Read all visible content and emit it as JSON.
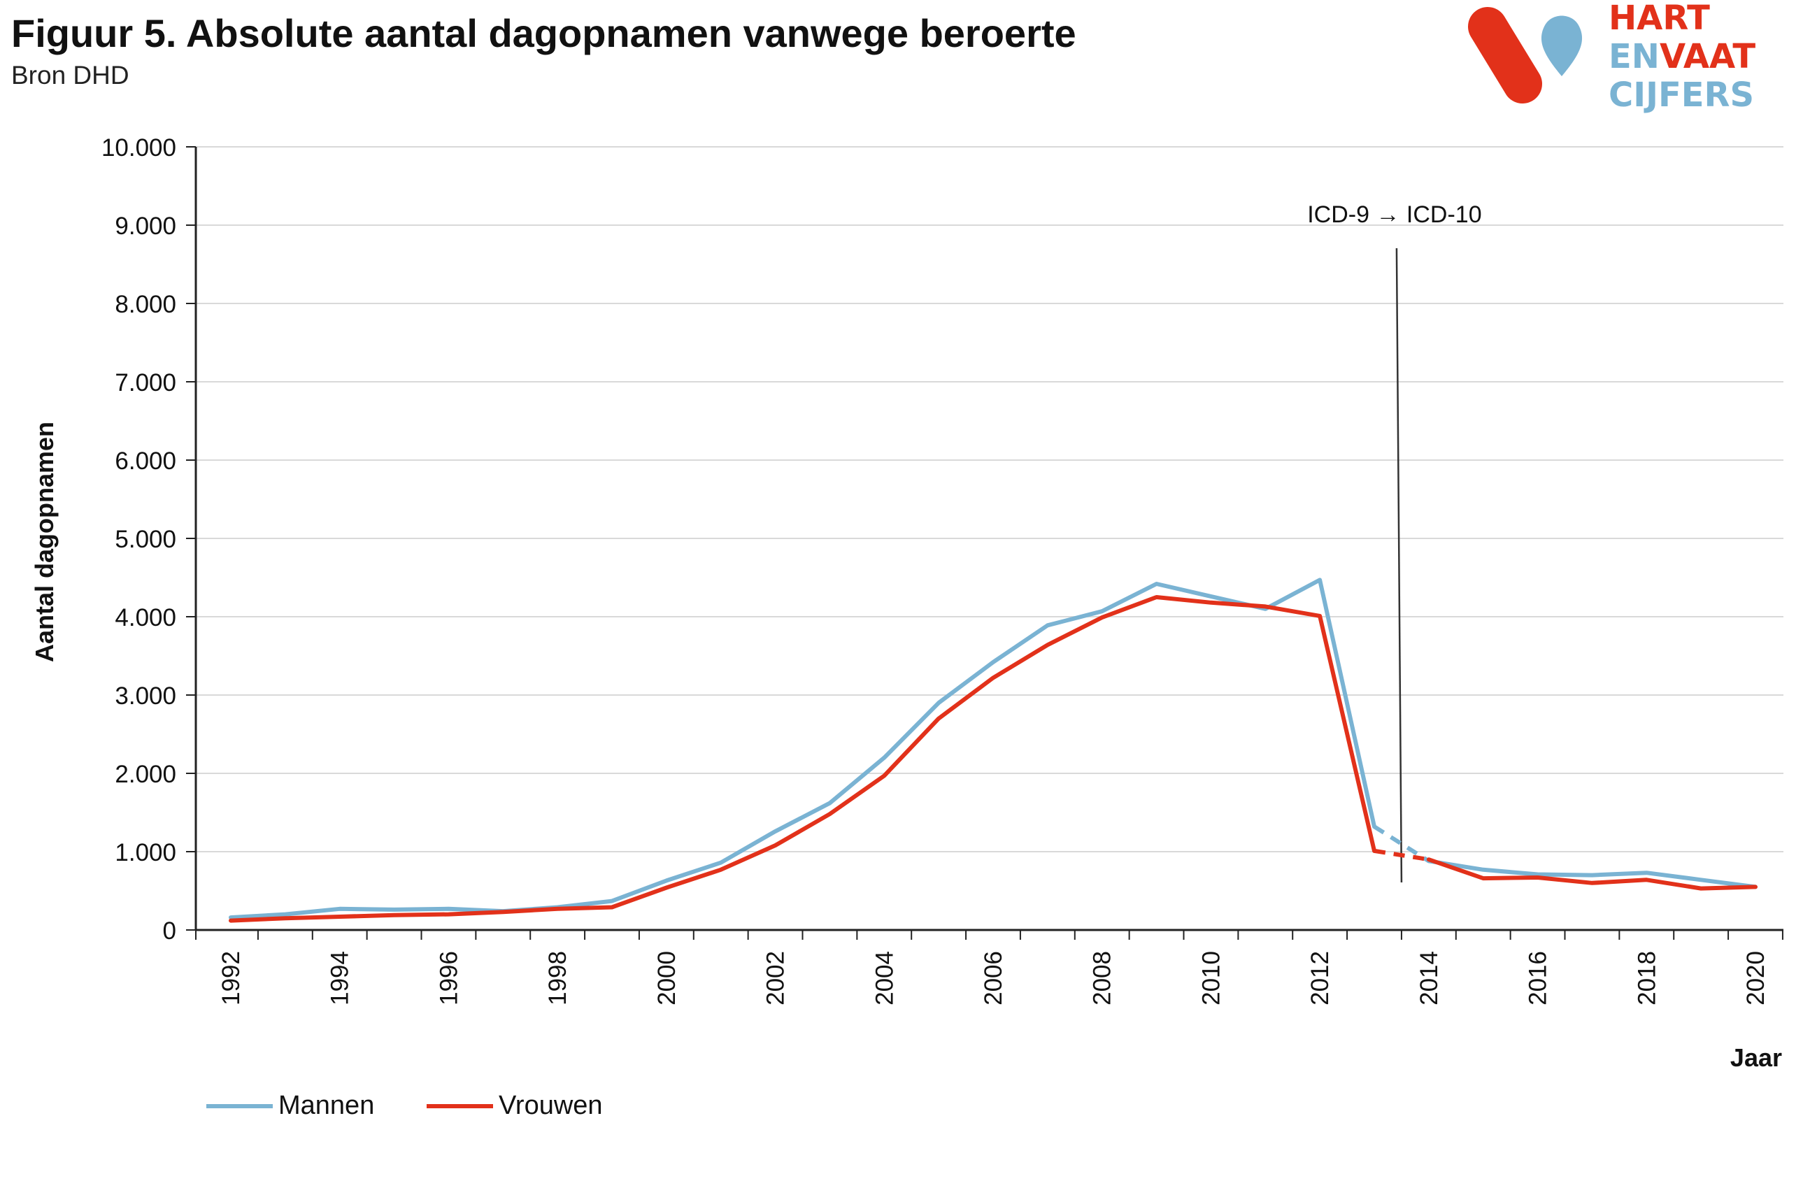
{
  "header": {
    "title": "Figuur 5. Absolute aantal dagopnamen vanwege beroerte",
    "subtitle": "Bron DHD"
  },
  "logo": {
    "line1_a": "HART",
    "line2_a": "EN",
    "line2_b": "VAAT",
    "line3_a": "CIJFERS",
    "colors": {
      "red": "#e2311a",
      "blue": "#7ab3d3"
    }
  },
  "chart_data": {
    "type": "line",
    "title": "Figuur 5. Absolute aantal dagopnamen vanwege beroerte",
    "xlabel": "Jaar",
    "ylabel": "Aantal dagopnamen",
    "ylim": [
      0,
      10000
    ],
    "yticks": [
      0,
      1000,
      2000,
      3000,
      4000,
      5000,
      6000,
      7000,
      8000,
      9000,
      10000
    ],
    "ytick_labels": [
      "0",
      "1.000",
      "2.000",
      "3.000",
      "4.000",
      "5.000",
      "6.000",
      "7.000",
      "8.000",
      "9.000",
      "10.000"
    ],
    "x": [
      1992,
      1993,
      1994,
      1995,
      1996,
      1997,
      1998,
      1999,
      2000,
      2001,
      2002,
      2003,
      2004,
      2005,
      2006,
      2007,
      2008,
      2009,
      2010,
      2011,
      2012,
      2013,
      2014,
      2015,
      2016,
      2017,
      2018,
      2019,
      2020
    ],
    "xtick_labels": [
      "1992",
      "1994",
      "1996",
      "1998",
      "2000",
      "2002",
      "2004",
      "2006",
      "2008",
      "2010",
      "2012",
      "2014",
      "2016",
      "2018",
      "2020"
    ],
    "grid": true,
    "legend_position": "bottom-left",
    "series": [
      {
        "name": "Mannen",
        "color": "#7ab3d3",
        "values": [
          160,
          200,
          270,
          260,
          270,
          240,
          290,
          370,
          630,
          860,
          1260,
          1620,
          2200,
          2900,
          3420,
          3890,
          4070,
          4420,
          4260,
          4100,
          4470,
          1320,
          880,
          770,
          710,
          700,
          730,
          640,
          550
        ],
        "dashed_between": [
          2013,
          2014
        ]
      },
      {
        "name": "Vrouwen",
        "color": "#e2311a",
        "values": [
          120,
          150,
          170,
          190,
          200,
          230,
          270,
          290,
          540,
          770,
          1080,
          1480,
          1970,
          2700,
          3220,
          3640,
          3990,
          4250,
          4180,
          4130,
          4010,
          1010,
          900,
          660,
          670,
          600,
          640,
          530,
          550
        ],
        "dashed_between": [
          2013,
          2014
        ]
      }
    ],
    "annotations": [
      {
        "text": "ICD-9 → ICD-10",
        "x": 2013.5
      }
    ]
  }
}
